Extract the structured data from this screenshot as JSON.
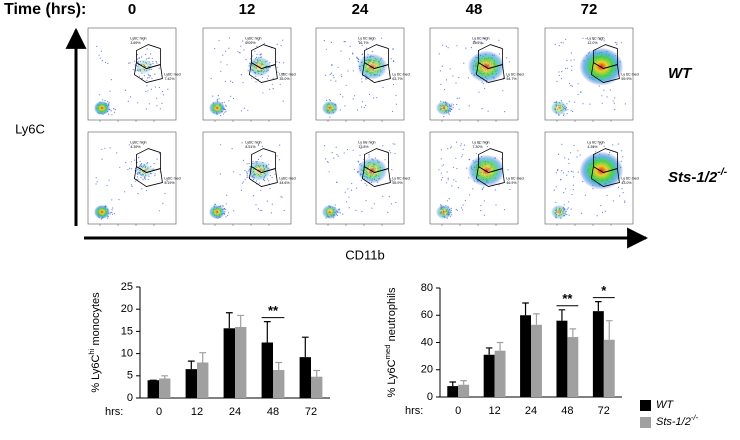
{
  "figure": {
    "time_label": "Time (hrs):",
    "time_points": [
      "0",
      "12",
      "24",
      "48",
      "72"
    ],
    "y_axis": "Ly6C",
    "x_axis": "CD11b",
    "rows": [
      {
        "label": {
          "text": "WT"
        },
        "gates": [
          [
            "Ly6C high",
            "3.69%",
            "Ly6C med",
            "7.42%"
          ],
          [
            "Ly6C high",
            "6.09%",
            "Ly6C med",
            "35.0%"
          ],
          [
            "Ly 6C high",
            "16.7%",
            "Ly 6C med",
            "63.7%"
          ],
          [
            "Ly 6C high",
            "15.5%",
            "Ly 6C med",
            "54.7%"
          ],
          [
            "Ly 6C high",
            "12.0%",
            "Ly 6C med",
            "59.9%"
          ]
        ]
      },
      {
        "label": {
          "text": "Sts-1/2",
          "sup": "-/-"
        },
        "gates": [
          [
            "Ly6C high",
            "4.39%",
            "Ly6C med",
            "9.19%"
          ],
          [
            "Ly6C high",
            "8.51%",
            "Ly6C med",
            "44.6%"
          ],
          [
            "Ly 6C high",
            "13.8%",
            "Ly 6C med",
            "55.9%"
          ],
          [
            "Ly 6C high",
            "7.30%",
            "Ly 6C med",
            "46.9%"
          ],
          [
            "Ly 6C high",
            "4.39%",
            "Ly 6C med",
            "43.0%"
          ]
        ]
      }
    ]
  },
  "chart_data": [
    {
      "type": "bar",
      "y_label": {
        "text": "% Ly6C",
        "sup": "hi",
        "after": " monocytes"
      },
      "x_label": "hrs:",
      "categories": [
        "0",
        "12",
        "24",
        "48",
        "72"
      ],
      "ylim": [
        0,
        25
      ],
      "yticks": [
        0,
        5,
        10,
        15,
        20,
        25
      ],
      "series": [
        {
          "name": "WT",
          "color": "#000000",
          "values": [
            4,
            6.5,
            15.7,
            12.5,
            9.2
          ],
          "errors": [
            0,
            1.8,
            3.5,
            4.7,
            4.5
          ]
        },
        {
          "name": "Sts-1/2",
          "name_sup": "-/-",
          "color": "#a0a0a0",
          "values": [
            4.4,
            8,
            16,
            6.3,
            4.8
          ],
          "errors": [
            0.6,
            2.2,
            2.6,
            1.7,
            1.4
          ]
        }
      ],
      "annotations": [
        {
          "text": "**",
          "at": "48"
        }
      ]
    },
    {
      "type": "bar",
      "y_label": {
        "text": "% Ly6C",
        "sup": "med",
        "after": " neutrophils"
      },
      "x_label": "hrs:",
      "categories": [
        "0",
        "12",
        "24",
        "48",
        "72"
      ],
      "ylim": [
        0,
        80
      ],
      "yticks": [
        0,
        20,
        40,
        60,
        80
      ],
      "series": [
        {
          "name": "WT",
          "color": "#000000",
          "values": [
            8,
            31,
            60,
            56,
            63
          ],
          "errors": [
            3,
            5,
            9,
            8,
            7
          ]
        },
        {
          "name": "Sts-1/2",
          "name_sup": "-/-",
          "color": "#a0a0a0",
          "values": [
            9,
            34,
            53,
            44,
            42
          ],
          "errors": [
            3,
            6,
            8,
            6,
            14
          ]
        }
      ],
      "annotations": [
        {
          "text": "**",
          "at": "48"
        },
        {
          "text": "*",
          "at": "72"
        }
      ]
    }
  ]
}
